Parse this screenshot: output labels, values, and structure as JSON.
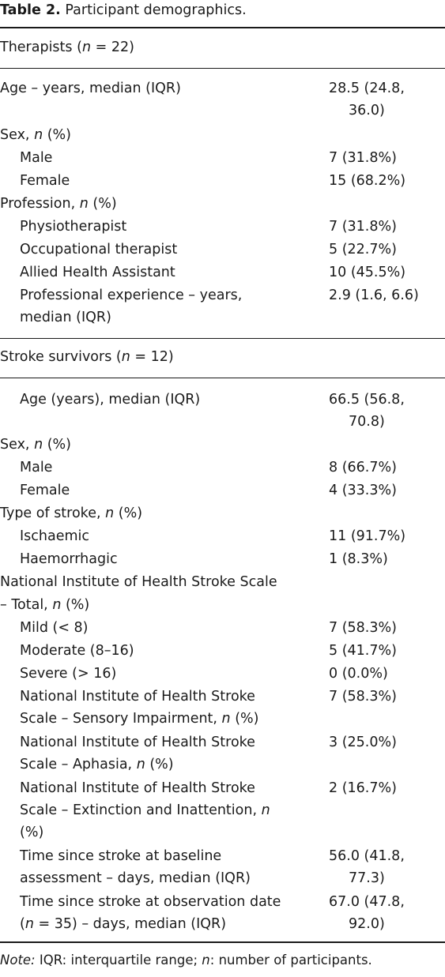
{
  "table": {
    "label": "Table 2.",
    "title": "Participant demographics.",
    "therapists": {
      "prefix": "Therapists (",
      "n_symbol": "n",
      "suffix": " = 22)",
      "rows": [
        {
          "label_lines": [
            "Age – years, median (IQR)"
          ],
          "value_lines": [
            "28.5 (24.8,",
            "36.0)"
          ]
        },
        {
          "label_parts": [
            "Sex, ",
            "n",
            " (%)"
          ]
        },
        {
          "label_lines": [
            "Male"
          ],
          "value_lines": [
            "7 (31.8%)"
          ]
        },
        {
          "label_lines": [
            "Female"
          ],
          "value_lines": [
            "15 (68.2%)"
          ]
        },
        {
          "label_parts": [
            "Profession, ",
            "n",
            " (%)"
          ]
        },
        {
          "label_lines": [
            "Physiotherapist"
          ],
          "value_lines": [
            "7 (31.8%)"
          ]
        },
        {
          "label_lines": [
            "Occupational therapist"
          ],
          "value_lines": [
            "5 (22.7%)"
          ]
        },
        {
          "label_lines": [
            "Allied Health Assistant"
          ],
          "value_lines": [
            "10 (45.5%)"
          ]
        },
        {
          "label_lines": [
            "Professional experience – years,",
            "median (IQR)"
          ],
          "value_lines": [
            "2.9 (1.6, 6.6)"
          ]
        }
      ]
    },
    "stroke": {
      "prefix": "Stroke survivors (",
      "n_symbol": "n",
      "suffix": " = 12)",
      "rows": [
        {
          "label_lines": [
            "Age (years), median (IQR)"
          ],
          "value_lines": [
            "66.5 (56.8,",
            "70.8)"
          ]
        },
        {
          "label_parts": [
            "Sex, ",
            "n",
            " (%)"
          ]
        },
        {
          "label_lines": [
            "Male"
          ],
          "value_lines": [
            "8 (66.7%)"
          ]
        },
        {
          "label_lines": [
            "Female"
          ],
          "value_lines": [
            "4 (33.3%)"
          ]
        },
        {
          "label_parts": [
            "Type of stroke, ",
            "n",
            " (%)"
          ]
        },
        {
          "label_lines": [
            "Ischaemic"
          ],
          "value_lines": [
            "11 (91.7%)"
          ]
        },
        {
          "label_lines": [
            "Haemorrhagic"
          ],
          "value_lines": [
            "1 (8.3%)"
          ]
        },
        {
          "label_lines": [
            "National Institute of Health Stroke Scale"
          ]
        },
        {
          "label_parts": [
            "– Total, ",
            "n",
            " (%)"
          ]
        },
        {
          "label_lines": [
            "Mild (< 8)"
          ],
          "value_lines": [
            "7 (58.3%)"
          ]
        },
        {
          "label_lines": [
            "Moderate (8–16)"
          ],
          "value_lines": [
            "5 (41.7%)"
          ]
        },
        {
          "label_lines": [
            "Severe (> 16)"
          ],
          "value_lines": [
            "0 (0.0%)"
          ]
        },
        {
          "label_lines": [
            "National Institute of Health Stroke"
          ],
          "label2_parts": [
            "Scale – Sensory Impairment, ",
            "n",
            " (%)"
          ],
          "value_lines": [
            "7 (58.3%)"
          ]
        },
        {
          "label_lines": [
            "National Institute of Health Stroke"
          ],
          "label2_parts": [
            "Scale – Aphasia, ",
            "n",
            " (%)"
          ],
          "value_lines": [
            "3 (25.0%)"
          ]
        },
        {
          "label_lines": [
            "National Institute of Health Stroke"
          ],
          "label2_parts": [
            "Scale – Extinction and Inattention, ",
            "n",
            ""
          ],
          "label3": "(%)",
          "value_lines": [
            "2 (16.7%)"
          ]
        },
        {
          "label_lines": [
            "Time since stroke at baseline",
            "assessment – days, median (IQR)"
          ],
          "value_lines": [
            "56.0 (41.8,",
            "77.3)"
          ]
        },
        {
          "label_lines": [
            "Time since stroke at observation date"
          ],
          "label2_parts": [
            "(",
            "n",
            " = 35) – days, median (IQR)"
          ],
          "value_lines": [
            "67.0 (47.8,",
            "92.0)"
          ]
        }
      ]
    },
    "note": {
      "lead": "Note:",
      "text_parts": [
        " IQR: interquartile range; ",
        "n",
        ": number of participants."
      ]
    }
  }
}
